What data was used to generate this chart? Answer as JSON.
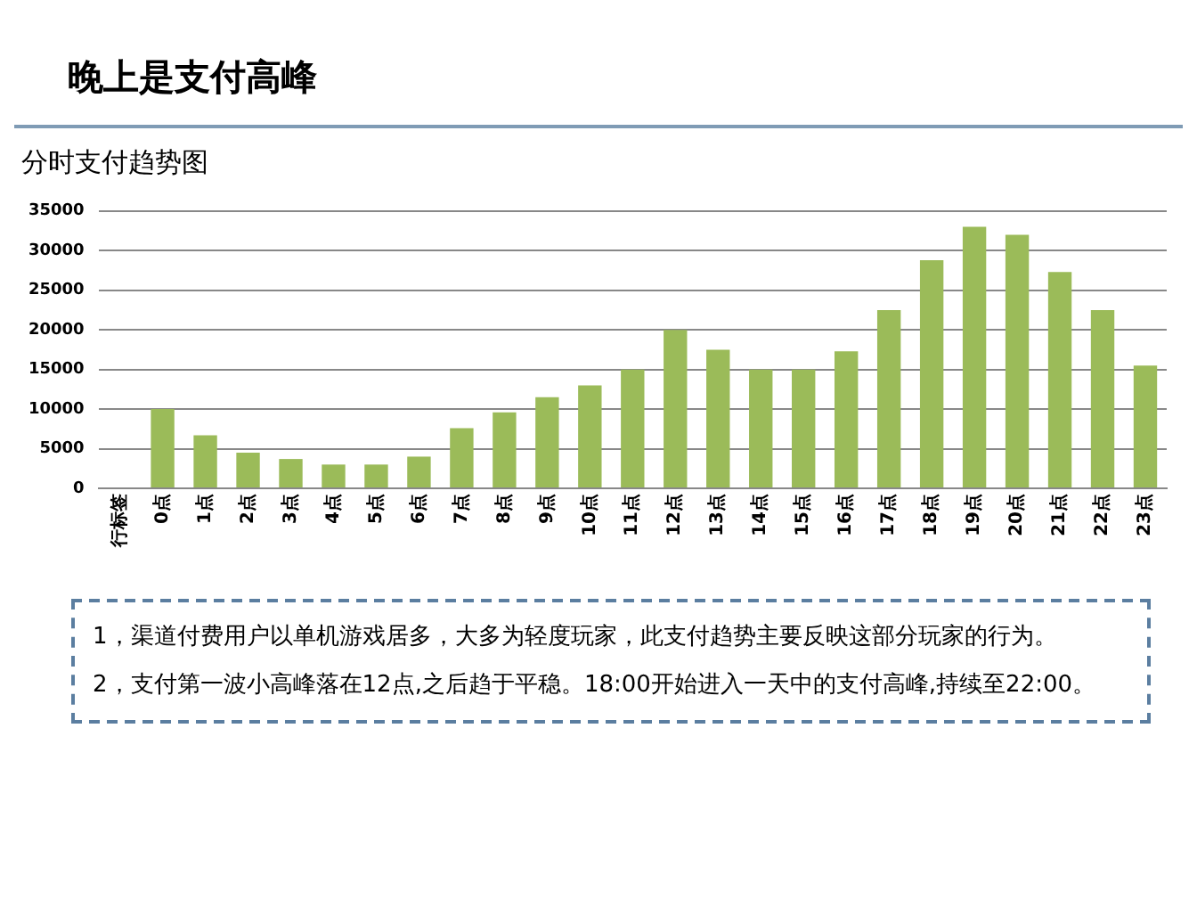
{
  "chart_data": {
    "type": "bar",
    "title": "晚上是支付高峰",
    "subtitle": "分时支付趋势图",
    "categories": [
      "行标签",
      "0点",
      "1点",
      "2点",
      "3点",
      "4点",
      "5点",
      "6点",
      "7点",
      "8点",
      "9点",
      "10点",
      "11点",
      "12点",
      "13点",
      "14点",
      "15点",
      "16点",
      "17点",
      "18点",
      "19点",
      "20点",
      "21点",
      "22点",
      "23点"
    ],
    "values": [
      null,
      10000,
      6700,
      4500,
      3700,
      3000,
      3000,
      4000,
      7600,
      9600,
      11500,
      13000,
      15000,
      20000,
      17500,
      15000,
      15000,
      17300,
      22500,
      28800,
      33000,
      32000,
      27300,
      22500,
      15500
    ],
    "color": "#9bbb59",
    "ylim": [
      0,
      35000
    ],
    "yticks": [
      0,
      5000,
      10000,
      15000,
      20000,
      25000,
      30000,
      35000
    ],
    "grid": "y",
    "annotations": [
      "1，渠道付费用户以单机游戏居多，大多为轻度玩家，此支付趋势主要反映这部分玩家的行为。",
      "2，支付第一波小高峰落在12点,之后趋于平稳。18:00开始进入一天中的支付高峰,持续至22:00。"
    ]
  }
}
